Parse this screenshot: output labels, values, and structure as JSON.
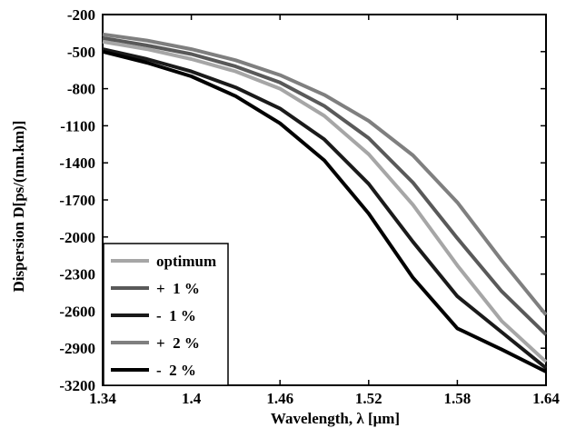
{
  "chart_data": {
    "type": "line",
    "xlabel": "Wavelength,  λ [μm]",
    "ylabel": "Dispersion D[ps/(nm.km)]",
    "xlim": [
      1.34,
      1.64
    ],
    "ylim": [
      -3200,
      -200
    ],
    "xticks": [
      1.34,
      1.4,
      1.46,
      1.52,
      1.58,
      1.64
    ],
    "xtick_labels": [
      "1.34",
      "1.4",
      "1.46",
      "1.52",
      "1.58",
      "1.64"
    ],
    "yticks": [
      -200,
      -500,
      -800,
      -1100,
      -1400,
      -1700,
      -2000,
      -2300,
      -2600,
      -2900,
      -3200
    ],
    "ytick_labels": [
      "-200",
      "-500",
      "-800",
      "-1100",
      "-1400",
      "-1700",
      "-2000",
      "-2300",
      "-2600",
      "-2900",
      "-3200"
    ],
    "grid": false,
    "legend_position": "bottom-left",
    "x": [
      1.34,
      1.37,
      1.4,
      1.43,
      1.46,
      1.49,
      1.52,
      1.55,
      1.58,
      1.61,
      1.64
    ],
    "series": [
      {
        "name": "optimum",
        "color": "#a6a6a6",
        "values": [
          -420,
          -480,
          -560,
          -660,
          -800,
          -1020,
          -1330,
          -1740,
          -2230,
          -2680,
          -3010
        ]
      },
      {
        "name": "+  1 %",
        "color": "#595959",
        "values": [
          -390,
          -450,
          -520,
          -620,
          -750,
          -940,
          -1200,
          -1560,
          -2010,
          -2440,
          -2790
        ]
      },
      {
        "name": "-  1 %",
        "color": "#1a1a1a",
        "values": [
          -480,
          -560,
          -660,
          -790,
          -960,
          -1210,
          -1570,
          -2040,
          -2480,
          -2770,
          -3060
        ]
      },
      {
        "name": "+  2 %",
        "color": "#7f7f7f",
        "values": [
          -360,
          -410,
          -480,
          -570,
          -690,
          -850,
          -1060,
          -1340,
          -1720,
          -2190,
          -2630
        ]
      },
      {
        "name": "-  2 %",
        "color": "#000000",
        "values": [
          -500,
          -590,
          -700,
          -860,
          -1080,
          -1380,
          -1810,
          -2330,
          -2740,
          -2910,
          -3090
        ]
      }
    ]
  }
}
